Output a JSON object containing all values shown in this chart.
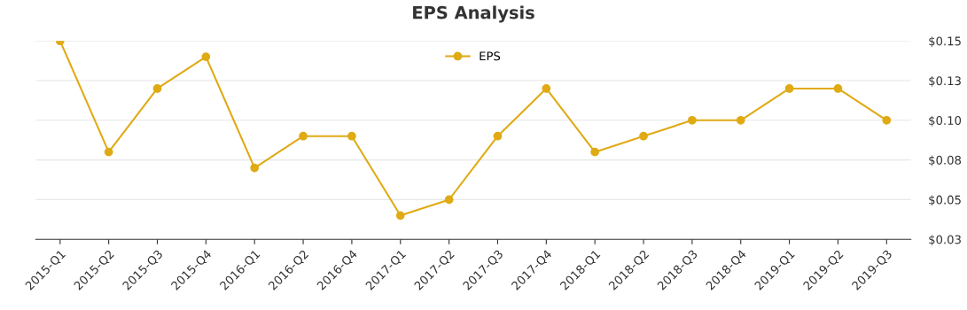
{
  "chart_data": {
    "type": "line",
    "title": "EPS Analysis",
    "categories": [
      "2015-Q1",
      "2015-Q2",
      "2015-Q3",
      "2015-Q4",
      "2016-Q1",
      "2016-Q2",
      "2016-Q4",
      "2017-Q1",
      "2017-Q2",
      "2017-Q3",
      "2017-Q4",
      "2018-Q1",
      "2018-Q2",
      "2018-Q3",
      "2018-Q4",
      "2019-Q1",
      "2019-Q2",
      "2019-Q3"
    ],
    "series": [
      {
        "name": "EPS",
        "color": "#e0aa14",
        "values": [
          0.15,
          0.08,
          0.12,
          0.14,
          0.07,
          0.09,
          0.09,
          0.04,
          0.05,
          0.09,
          0.12,
          0.08,
          0.09,
          0.1,
          0.1,
          0.12,
          0.12,
          0.1
        ]
      }
    ],
    "ylim": [
      0.025,
      0.15
    ],
    "yticks": [
      {
        "value": 0.025,
        "label": "$0.03"
      },
      {
        "value": 0.05,
        "label": "$0.05"
      },
      {
        "value": 0.075,
        "label": "$0.08"
      },
      {
        "value": 0.1,
        "label": "$0.10"
      },
      {
        "value": 0.125,
        "label": "$0.13"
      },
      {
        "value": 0.15,
        "label": "$0.15"
      }
    ],
    "grid": "y",
    "legend": "top",
    "marker": "circle",
    "line_style": "solid"
  }
}
